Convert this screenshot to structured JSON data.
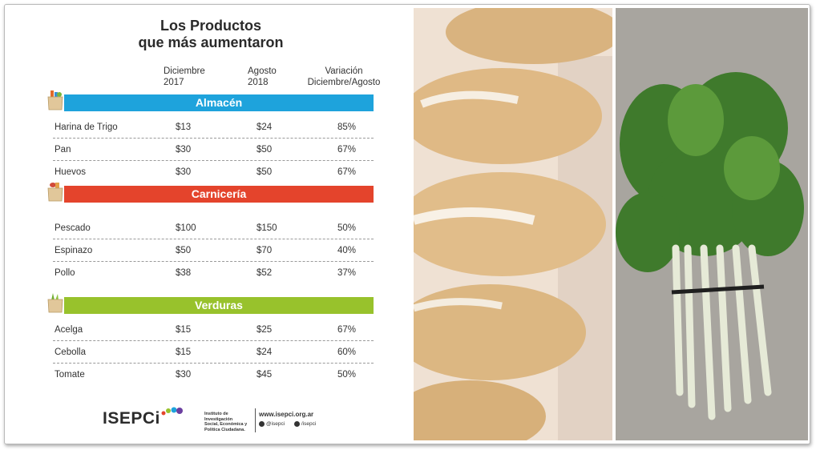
{
  "title": {
    "line1": "Los Productos",
    "line2": "que más aumentaron"
  },
  "columns": {
    "dec": {
      "line1": "Diciembre",
      "line2": "2017"
    },
    "ago": {
      "line1": "Agosto",
      "line2": "2018"
    },
    "var": {
      "line1": "Variación",
      "line2": "Diciembre/Agosto"
    }
  },
  "categories": [
    {
      "name": "Almacén",
      "color": "#1ea3dc",
      "rows": [
        {
          "name": "Harina de Trigo",
          "dec": "$13",
          "ago": "$24",
          "var": "85%"
        },
        {
          "name": "Pan",
          "dec": "$30",
          "ago": "$50",
          "var": "67%"
        },
        {
          "name": "Huevos",
          "dec": "$30",
          "ago": "$50",
          "var": "67%"
        }
      ]
    },
    {
      "name": "Carnicería",
      "color": "#e4442c",
      "rows": [
        {
          "name": "Pescado",
          "dec": "$100",
          "ago": "$150",
          "var": "50%"
        },
        {
          "name": "Espinazo",
          "dec": "$50",
          "ago": "$70",
          "var": "40%"
        },
        {
          "name": "Pollo",
          "dec": "$38",
          "ago": "$52",
          "var": "37%"
        }
      ]
    },
    {
      "name": "Verduras",
      "color": "#98c22c",
      "rows": [
        {
          "name": "Acelga",
          "dec": "$15",
          "ago": "$25",
          "var": "67%"
        },
        {
          "name": "Cebolla",
          "dec": "$15",
          "ago": "$24",
          "var": "60%"
        },
        {
          "name": "Tomate",
          "dec": "$30",
          "ago": "$45",
          "var": "50%"
        }
      ]
    }
  ],
  "footer": {
    "logo": "ISEPCi",
    "institute": {
      "line1": "Instituto de Investigación",
      "line2": "Social, Económica y",
      "line3": "Política Ciudadana."
    },
    "website": "www.isepci.org.ar",
    "twitter": "@isepci",
    "facebook": "/isepci"
  },
  "icons": {
    "bag": "grocery-bag-icon",
    "twitter": "twitter-icon",
    "facebook": "facebook-icon"
  },
  "photos": [
    "bread-photo",
    "chard-photo"
  ]
}
